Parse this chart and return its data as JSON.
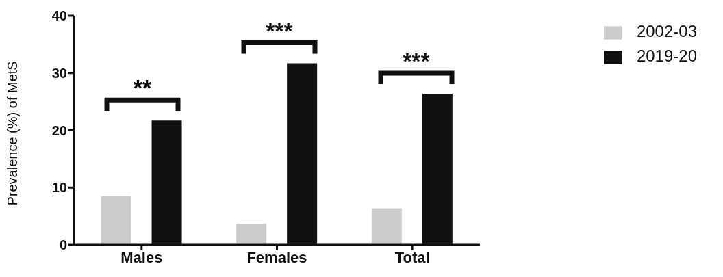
{
  "chart_data": {
    "type": "bar",
    "ylabel": "Prevalence (%) of MetS",
    "categories": [
      "Males",
      "Females",
      "Total"
    ],
    "series": [
      {
        "name": "2002-03",
        "color": "#cccccc",
        "values": [
          8.5,
          3.7,
          6.4
        ]
      },
      {
        "name": "2019-20",
        "color": "#111111",
        "values": [
          21.7,
          31.7,
          26.4
        ]
      }
    ],
    "ylim": [
      0,
      40
    ],
    "yticks": [
      0,
      10,
      20,
      30,
      40
    ],
    "grid": false,
    "legend": "top right",
    "annotations": [
      "**",
      "***",
      "***"
    ]
  }
}
